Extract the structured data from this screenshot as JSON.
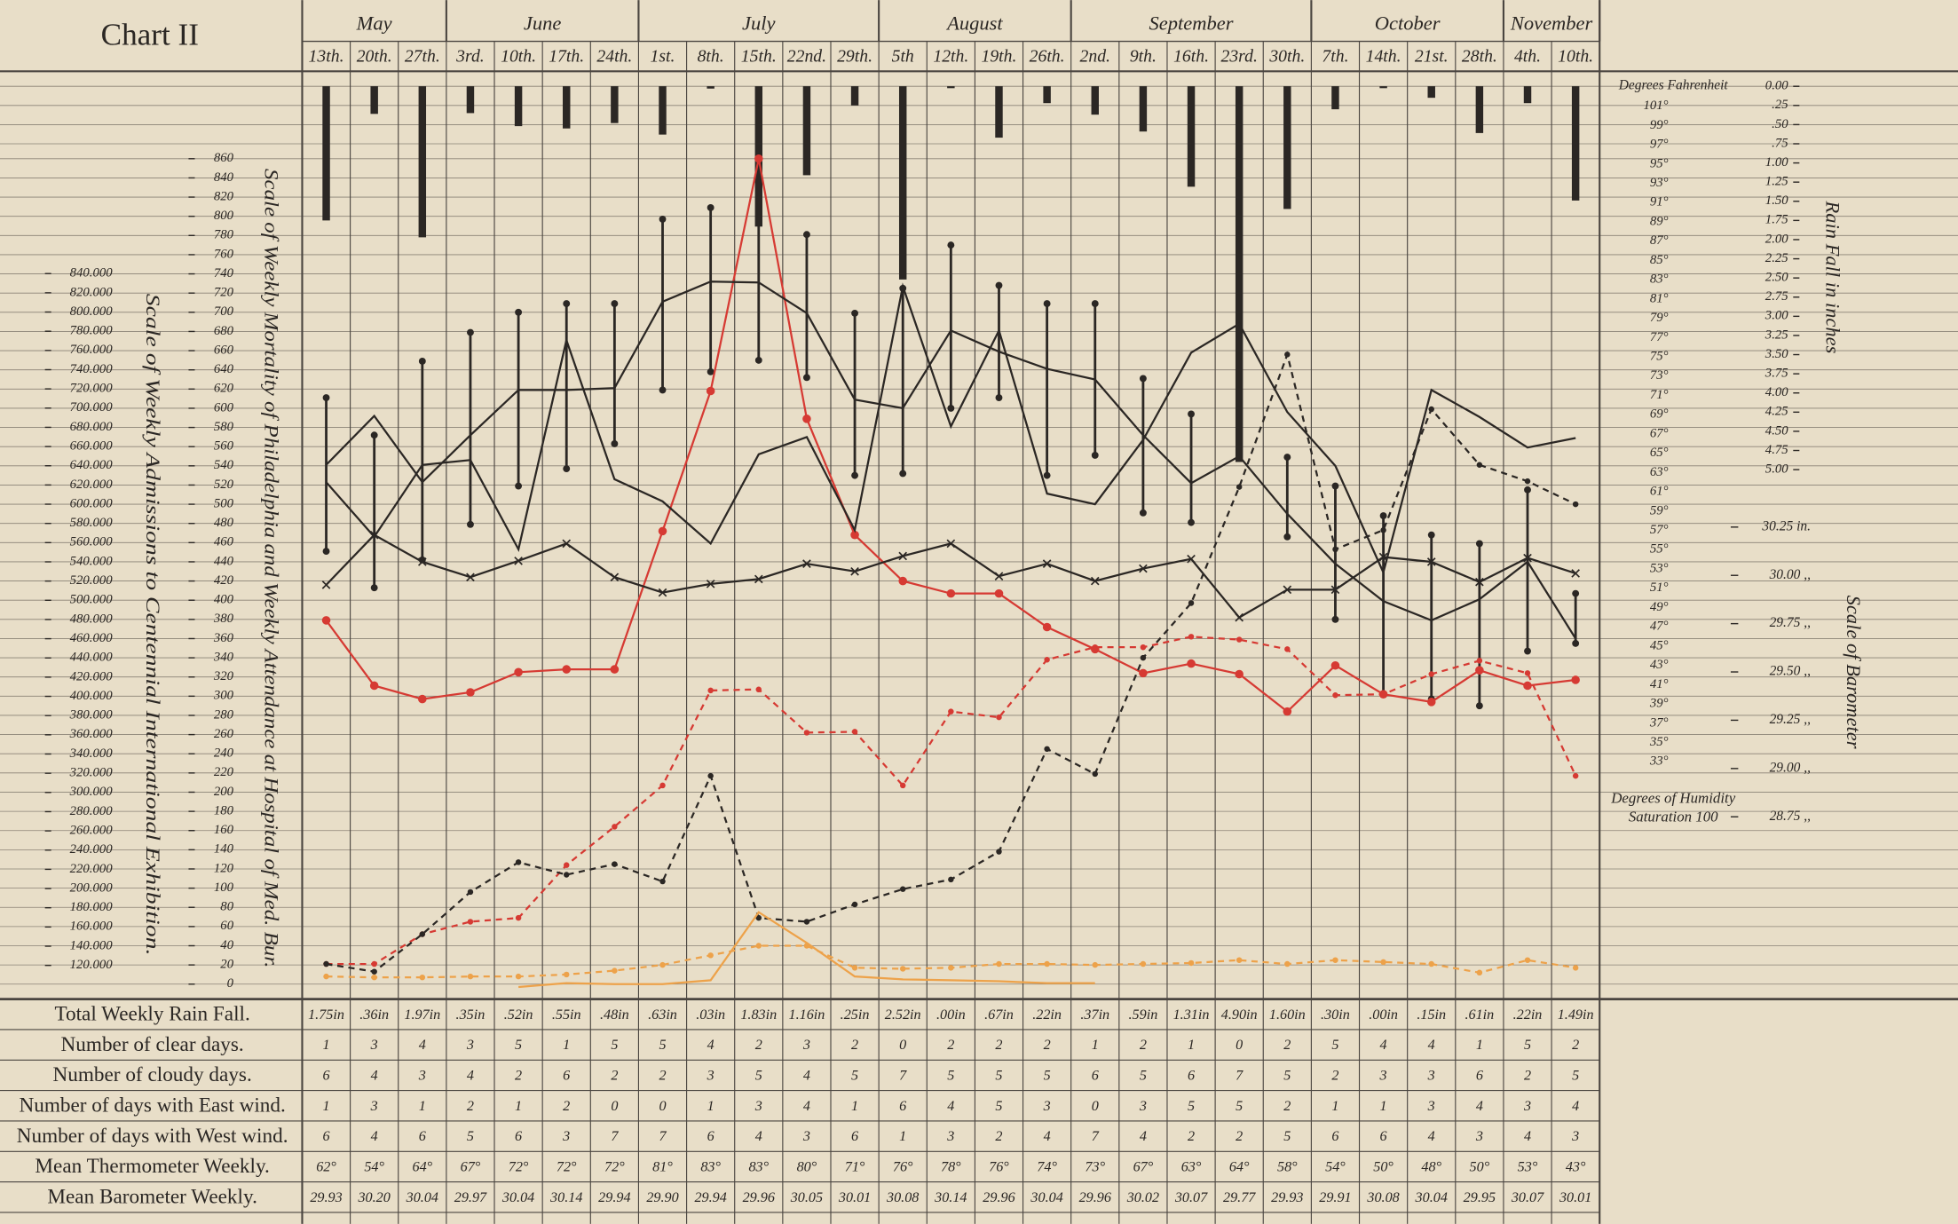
{
  "title": "Chart II",
  "months": [
    {
      "name": "May",
      "weeks": 3
    },
    {
      "name": "June",
      "weeks": 4
    },
    {
      "name": "July",
      "weeks": 5
    },
    {
      "name": "August",
      "weeks": 4
    },
    {
      "name": "September",
      "weeks": 5
    },
    {
      "name": "October",
      "weeks": 4
    },
    {
      "name": "November",
      "weeks": 2
    }
  ],
  "chart_data": {
    "type": "line",
    "categories": [
      "13th.",
      "20th.",
      "27th.",
      "3rd.",
      "10th.",
      "17th.",
      "24th.",
      "1st.",
      "8th.",
      "15th.",
      "22nd.",
      "29th.",
      "5th",
      "12th.",
      "19th.",
      "26th.",
      "2nd.",
      "9th.",
      "16th.",
      "23rd.",
      "30th.",
      "7th.",
      "14th.",
      "21st.",
      "28th.",
      "4th.",
      "10th."
    ],
    "grid": true,
    "ylabel": "Scale of Weekly Mortality of Philadelphia and Weekly Attendance at Hospital of Med. Bur.",
    "ylim": [
      0,
      860
    ],
    "yticks": [
      0,
      20,
      40,
      60,
      80,
      100,
      120,
      140,
      160,
      180,
      200,
      220,
      240,
      260,
      280,
      300,
      320,
      340,
      360,
      380,
      400,
      420,
      440,
      460,
      480,
      500,
      520,
      540,
      560,
      580,
      600,
      620,
      640,
      660,
      680,
      700,
      720,
      740,
      760,
      780,
      800,
      820,
      840,
      860
    ],
    "y2label": "Scale of Weekly Admissions to Centennial International Exhibition.",
    "y2lim": [
      120000,
      840000
    ],
    "y2ticks": [
      {
        "value": 120000,
        "label": "120.000"
      },
      {
        "value": 140000,
        "label": "140.000"
      },
      {
        "value": 160000,
        "label": "160.000"
      },
      {
        "value": 180000,
        "label": "180.000"
      },
      {
        "value": 200000,
        "label": "200.000"
      },
      {
        "value": 220000,
        "label": "220.000"
      },
      {
        "value": 240000,
        "label": "240.000"
      },
      {
        "value": 260000,
        "label": "260.000"
      },
      {
        "value": 280000,
        "label": "280.000"
      },
      {
        "value": 300000,
        "label": "300.000"
      },
      {
        "value": 320000,
        "label": "320.000"
      },
      {
        "value": 340000,
        "label": "340.000"
      },
      {
        "value": 360000,
        "label": "360.000"
      },
      {
        "value": 380000,
        "label": "380.000"
      },
      {
        "value": 400000,
        "label": "400.000"
      },
      {
        "value": 420000,
        "label": "420.000"
      },
      {
        "value": 440000,
        "label": "440.000"
      },
      {
        "value": 460000,
        "label": "460.000"
      },
      {
        "value": 480000,
        "label": "480.000"
      },
      {
        "value": 500000,
        "label": "500.000"
      },
      {
        "value": 520000,
        "label": "520.000"
      },
      {
        "value": 540000,
        "label": "540.000"
      },
      {
        "value": 560000,
        "label": "560.000"
      },
      {
        "value": 580000,
        "label": "580.000"
      },
      {
        "value": 600000,
        "label": "600.000"
      },
      {
        "value": 620000,
        "label": "620.000"
      },
      {
        "value": 640000,
        "label": "640.000"
      },
      {
        "value": 660000,
        "label": "660.000"
      },
      {
        "value": 680000,
        "label": "680.000"
      },
      {
        "value": 700000,
        "label": "700.000"
      },
      {
        "value": 720000,
        "label": "720.000"
      },
      {
        "value": 740000,
        "label": "740.000"
      },
      {
        "value": 760000,
        "label": "760.000"
      },
      {
        "value": 780000,
        "label": "780.000"
      },
      {
        "value": 800000,
        "label": "800.000"
      },
      {
        "value": 820000,
        "label": "820.000"
      },
      {
        "value": 840000,
        "label": "840.000"
      }
    ],
    "series": [
      {
        "color": "#d63a33",
        "dash": false,
        "marker": "dot",
        "values": [
          379,
          311,
          297,
          304,
          325,
          328,
          328,
          472,
          618,
          860,
          589,
          468,
          420,
          407,
          407,
          372,
          349,
          324,
          334,
          323,
          284,
          332,
          302,
          294,
          327,
          311,
          317
        ]
      },
      {
        "color": "#d63a33",
        "dash": true,
        "marker": "dot",
        "values": [
          21,
          21,
          52,
          65,
          69,
          124,
          164,
          207,
          306,
          307,
          262,
          263,
          207,
          284,
          278,
          338,
          351,
          351,
          362,
          359,
          349,
          301,
          302,
          323,
          337,
          324,
          217
        ]
      },
      {
        "color": "#2b2724",
        "dash": true,
        "marker": "dot",
        "values": [
          21,
          13,
          52,
          96,
          127,
          114,
          125,
          107,
          217,
          69,
          65,
          83,
          99,
          109,
          138,
          245,
          219,
          340,
          397,
          518,
          656,
          453,
          473,
          599,
          541,
          524,
          500
        ]
      },
      {
        "color": "#2b2724",
        "dash": false,
        "marker": "cross",
        "values": [
          416,
          468,
          440,
          424,
          441,
          459,
          424,
          408,
          417,
          422,
          438,
          430,
          446,
          459,
          425,
          438,
          420,
          433,
          443,
          382,
          411,
          411,
          445,
          440,
          419,
          444,
          428
        ]
      },
      {
        "color": "#2b2724",
        "dash": false,
        "marker": "none",
        "values": [
          541,
          592,
          523,
          572,
          619,
          619,
          621,
          711,
          732,
          731,
          699,
          609,
          600,
          681,
          659,
          641,
          630,
          572,
          522,
          550,
          490,
          438,
          399,
          379,
          401,
          440,
          360
        ]
      },
      {
        "color": "#2b2724",
        "dash": false,
        "marker": "none",
        "values": [
          523,
          466,
          541,
          546,
          453,
          671,
          526,
          503,
          459,
          552,
          570,
          473,
          727,
          581,
          681,
          511,
          500,
          567,
          658,
          688,
          596,
          540,
          429,
          619,
          591,
          559,
          569
        ]
      },
      {
        "color": "#eda24a",
        "dash": false,
        "marker": "none",
        "values": [
          null,
          null,
          null,
          null,
          -3,
          1,
          0,
          0,
          4,
          75,
          43,
          8,
          5,
          4,
          3,
          1,
          1,
          null,
          null,
          null,
          null,
          null,
          null,
          null,
          null,
          null,
          null
        ]
      },
      {
        "color": "#eda24a",
        "dash": true,
        "marker": "dot",
        "values": [
          8,
          7,
          7,
          8,
          8,
          10,
          14,
          20,
          30,
          40,
          40,
          17,
          16,
          17,
          21,
          21,
          20,
          21,
          22,
          25,
          21,
          25,
          23,
          21,
          12,
          25,
          17
        ]
      }
    ],
    "ranges": {
      "color": "#2b2724",
      "low": [
        451,
        413,
        442,
        479,
        519,
        537,
        563,
        619,
        638,
        650,
        632,
        530,
        532,
        600,
        611,
        530,
        551,
        491,
        481,
        null,
        466,
        380,
        302,
        297,
        290,
        347,
        355
      ],
      "high": [
        611,
        572,
        649,
        679,
        700,
        709,
        709,
        797,
        809,
        850,
        781,
        699,
        725,
        770,
        728,
        709,
        709,
        631,
        594,
        null,
        549,
        519,
        488,
        468,
        459,
        515,
        407
      ]
    },
    "rain": {
      "label": "Total Weekly Rain Fall.",
      "axis_title": "Rain Fall in inches",
      "color": "#2b2724",
      "values": [
        1.75,
        0.36,
        1.97,
        0.35,
        0.52,
        0.55,
        0.48,
        0.63,
        0.03,
        1.83,
        1.16,
        0.25,
        2.52,
        0.0,
        0.67,
        0.22,
        0.37,
        0.59,
        1.31,
        4.9,
        1.6,
        0.3,
        0.0,
        0.15,
        0.61,
        0.22,
        1.49
      ],
      "value_labels": [
        "1.75in",
        ".36in",
        "1.97in",
        ".35in",
        ".52in",
        ".55in",
        ".48in",
        ".63in",
        ".03in",
        "1.83in",
        "1.16in",
        ".25in",
        "2.52in",
        ".00in",
        ".67in",
        ".22in",
        ".37in",
        ".59in",
        "1.31in",
        "4.90in",
        "1.60in",
        ".30in",
        ".00in",
        ".15in",
        ".61in",
        ".22in",
        "1.49in"
      ],
      "ylim": [
        0,
        5
      ],
      "yticks": [
        {
          "value": 0,
          "label": "0.00"
        },
        {
          "value": 0.25,
          "label": ".25"
        },
        {
          "value": 0.5,
          "label": ".50"
        },
        {
          "value": 0.75,
          "label": ".75"
        },
        {
          "value": 1,
          "label": "1.00"
        },
        {
          "value": 1.25,
          "label": "1.25"
        },
        {
          "value": 1.5,
          "label": "1.50"
        },
        {
          "value": 1.75,
          "label": "1.75"
        },
        {
          "value": 2,
          "label": "2.00"
        },
        {
          "value": 2.25,
          "label": "2.25"
        },
        {
          "value": 2.5,
          "label": "2.50"
        },
        {
          "value": 2.75,
          "label": "2.75"
        },
        {
          "value": 3,
          "label": "3.00"
        },
        {
          "value": 3.25,
          "label": "3.25"
        },
        {
          "value": 3.5,
          "label": "3.50"
        },
        {
          "value": 3.75,
          "label": "3.75"
        },
        {
          "value": 4,
          "label": "4.00"
        },
        {
          "value": 4.25,
          "label": "4.25"
        },
        {
          "value": 4.5,
          "label": "4.50"
        },
        {
          "value": 4.75,
          "label": "4.75"
        },
        {
          "value": 5,
          "label": "5.00"
        }
      ]
    },
    "temperature_scale": {
      "title": "Degrees Fahrenheit",
      "ylim": [
        33,
        101
      ],
      "yticks": [
        {
          "value": 33,
          "label": "33°"
        },
        {
          "value": 35,
          "label": "35°"
        },
        {
          "value": 37,
          "label": "37°"
        },
        {
          "value": 39,
          "label": "39°"
        },
        {
          "value": 41,
          "label": "41°"
        },
        {
          "value": 43,
          "label": "43°"
        },
        {
          "value": 45,
          "label": "45°"
        },
        {
          "value": 47,
          "label": "47°"
        },
        {
          "value": 49,
          "label": "49°"
        },
        {
          "value": 51,
          "label": "51°"
        },
        {
          "value": 53,
          "label": "53°"
        },
        {
          "value": 55,
          "label": "55°"
        },
        {
          "value": 57,
          "label": "57°"
        },
        {
          "value": 59,
          "label": "59°"
        },
        {
          "value": 61,
          "label": "61°"
        },
        {
          "value": 63,
          "label": "63°"
        },
        {
          "value": 65,
          "label": "65°"
        },
        {
          "value": 67,
          "label": "67°"
        },
        {
          "value": 69,
          "label": "69°"
        },
        {
          "value": 71,
          "label": "71°"
        },
        {
          "value": 73,
          "label": "73°"
        },
        {
          "value": 75,
          "label": "75°"
        },
        {
          "value": 77,
          "label": "77°"
        },
        {
          "value": 79,
          "label": "79°"
        },
        {
          "value": 81,
          "label": "81°"
        },
        {
          "value": 83,
          "label": "83°"
        },
        {
          "value": 85,
          "label": "85°"
        },
        {
          "value": 87,
          "label": "87°"
        },
        {
          "value": 89,
          "label": "89°"
        },
        {
          "value": 91,
          "label": "91°"
        },
        {
          "value": 93,
          "label": "93°"
        },
        {
          "value": 95,
          "label": "95°"
        },
        {
          "value": 97,
          "label": "97°"
        },
        {
          "value": 99,
          "label": "99°"
        },
        {
          "value": 101,
          "label": "101°"
        }
      ]
    },
    "barometer_scale": {
      "title": "Scale of Barometer",
      "ylim": [
        28.75,
        30.25
      ],
      "yticks": [
        {
          "value": 28.75,
          "label": "28.75 ,,"
        },
        {
          "value": 29,
          "label": "29.00 ,,"
        },
        {
          "value": 29.25,
          "label": "29.25 ,,"
        },
        {
          "value": 29.5,
          "label": "29.50 ,,"
        },
        {
          "value": 29.75,
          "label": "29.75 ,,"
        },
        {
          "value": 30,
          "label": "30.00 ,,"
        },
        {
          "value": 30.25,
          "label": "30.25 in."
        }
      ]
    },
    "humidity_note": [
      "Degrees of Humidity",
      "Saturation 100"
    ]
  },
  "table": {
    "rows": [
      {
        "label": "Number of clear days.",
        "values": [
          1,
          3,
          4,
          3,
          5,
          1,
          5,
          5,
          4,
          2,
          3,
          2,
          0,
          2,
          2,
          2,
          1,
          2,
          1,
          0,
          2,
          5,
          4,
          4,
          1,
          5,
          2
        ]
      },
      {
        "label": "Number of cloudy days.",
        "values": [
          6,
          4,
          3,
          4,
          2,
          6,
          2,
          2,
          3,
          5,
          4,
          5,
          7,
          5,
          5,
          5,
          6,
          5,
          6,
          7,
          5,
          2,
          3,
          3,
          6,
          2,
          5
        ]
      },
      {
        "label": "Number of days with East wind.",
        "values": [
          1,
          3,
          1,
          2,
          1,
          2,
          0,
          0,
          1,
          3,
          4,
          1,
          6,
          4,
          5,
          3,
          0,
          3,
          5,
          5,
          2,
          1,
          1,
          3,
          4,
          3,
          4
        ]
      },
      {
        "label": "Number of days with West wind.",
        "values": [
          6,
          4,
          6,
          5,
          6,
          3,
          7,
          7,
          6,
          4,
          3,
          6,
          1,
          3,
          2,
          4,
          7,
          4,
          2,
          2,
          5,
          6,
          6,
          4,
          3,
          4,
          3
        ]
      },
      {
        "label": "Mean Thermometer Weekly.",
        "values": [
          62,
          54,
          64,
          67,
          72,
          72,
          72,
          81,
          83,
          83,
          80,
          71,
          76,
          78,
          76,
          74,
          73,
          67,
          63,
          64,
          58,
          54,
          50,
          48,
          50,
          53,
          43
        ],
        "value_labels": [
          "62°",
          "54°",
          "64°",
          "67°",
          "72°",
          "72°",
          "72°",
          "81°",
          "83°",
          "83°",
          "80°",
          "71°",
          "76°",
          "78°",
          "76°",
          "74°",
          "73°",
          "67°",
          "63°",
          "64°",
          "58°",
          "54°",
          "50°",
          "48°",
          "50°",
          "53°",
          "43°"
        ]
      },
      {
        "label": "Mean Barometer Weekly.",
        "values": [
          29.93,
          30.2,
          30.04,
          29.97,
          30.04,
          30.14,
          29.94,
          29.9,
          29.94,
          29.96,
          30.05,
          30.01,
          30.08,
          30.14,
          29.96,
          30.04,
          29.96,
          30.02,
          30.07,
          29.77,
          29.93,
          29.91,
          30.08,
          30.04,
          29.95,
          30.07,
          30.01
        ],
        "value_labels": [
          "29.93",
          "30.20",
          "30.04",
          "29.97",
          "30.04",
          "30.14",
          "29.94",
          "29.90",
          "29.94",
          "29.96",
          "30.05",
          "30.01",
          "30.08",
          "30.14",
          "29.96",
          "30.04",
          "29.96",
          "30.02",
          "30.07",
          "29.77",
          "29.93",
          "29.91",
          "30.08",
          "30.04",
          "29.95",
          "30.07",
          "30.01"
        ]
      }
    ]
  }
}
